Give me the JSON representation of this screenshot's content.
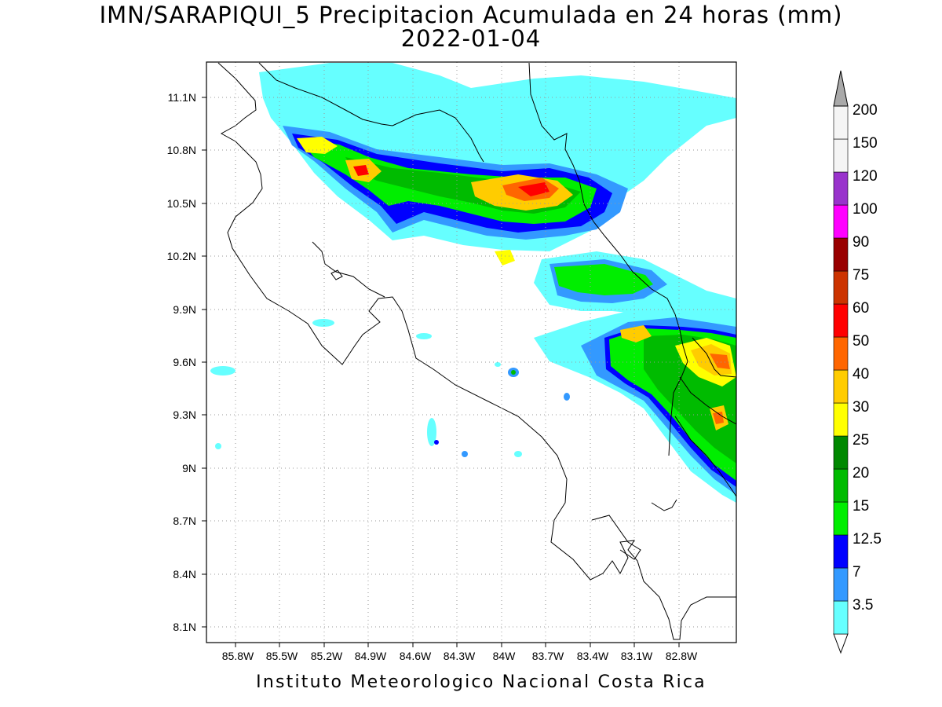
{
  "title_line1": "IMN/SARAPIQUI_5 Precipitacion Acumulada en 24 horas (mm)",
  "title_line2": "2022-01-04",
  "footer": "Instituto Meteorologico Nacional Costa Rica",
  "map": {
    "lon_range": [
      -86.0,
      -83.0
    ],
    "lat_range": [
      8.0,
      11.3
    ],
    "lat_ticks": [
      "11.1N",
      "10.8N",
      "10.5N",
      "10.2N",
      "9.9N",
      "9.6N",
      "9.3N",
      "9N",
      "8.7N",
      "8.4N",
      "8.1N"
    ],
    "lon_ticks": [
      "85.8W",
      "85.5W",
      "85.2W",
      "84.9W",
      "84.6W",
      "84.3W",
      "84W",
      "83.7W",
      "83.4W",
      "83.1W",
      "82.8W"
    ],
    "gridlines": "dotted"
  },
  "legend": {
    "labels": [
      "3.5",
      "7",
      "12.5",
      "15",
      "20",
      "25",
      "30",
      "40",
      "50",
      "60",
      "75",
      "90",
      "100",
      "120",
      "150",
      "200"
    ],
    "colors": [
      "#ffffff",
      "#66ffff",
      "#3399ff",
      "#0000ff",
      "#00ee00",
      "#00bb00",
      "#008800",
      "#ffff00",
      "#ffcc00",
      "#ff6600",
      "#ff0000",
      "#cc3300",
      "#990000",
      "#ff00ff",
      "#9933cc",
      "#f5f5f5",
      "#a9a9a9"
    ]
  }
}
